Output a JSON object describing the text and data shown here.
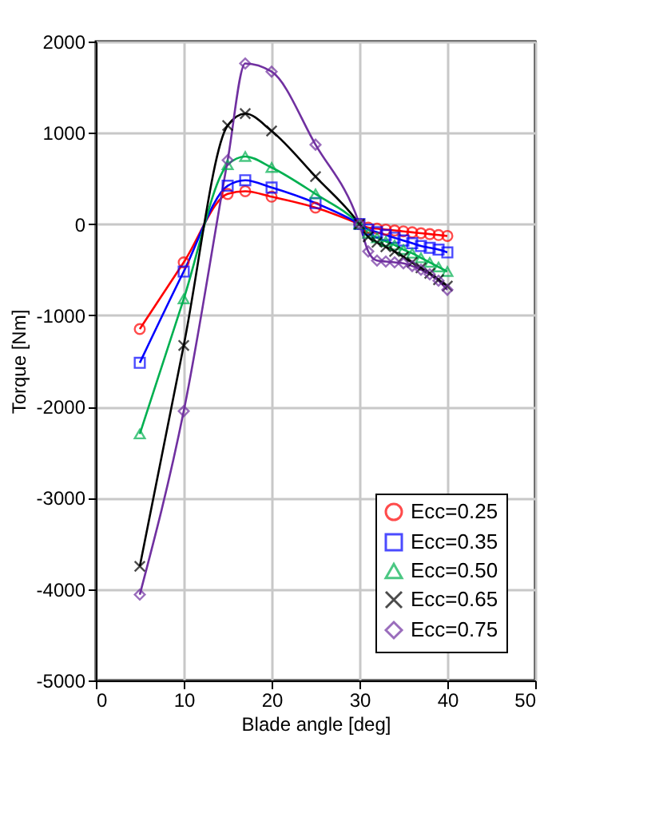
{
  "chart_data": {
    "type": "line",
    "xlabel": "Blade angle [deg]",
    "ylabel": "Torque [Nm]",
    "x": [
      5,
      10,
      15,
      17,
      20,
      25,
      30,
      31,
      32,
      33,
      34,
      35,
      36,
      37,
      38,
      39,
      40
    ],
    "xlim": [
      0,
      50
    ],
    "xticks": [
      0,
      10,
      20,
      30,
      40,
      50
    ],
    "ylim": [
      -5000,
      2000
    ],
    "yticks": [
      -5000,
      -4000,
      -3000,
      -2000,
      -1000,
      0,
      1000,
      2000
    ],
    "grid": true,
    "legend": "bottom right",
    "line_style": "solid",
    "series": [
      {
        "name": "Ecc=0.25",
        "color": "#ff0000",
        "marker": "circle",
        "values": [
          -1150,
          -420,
          330,
          360,
          300,
          180,
          0,
          -40,
          -50,
          -60,
          -70,
          -80,
          -90,
          -100,
          -110,
          -120,
          -130
        ]
      },
      {
        "name": "Ecc=0.35",
        "color": "#0000ff",
        "marker": "square",
        "values": [
          -1520,
          -520,
          420,
          480,
          400,
          230,
          0,
          -60,
          -90,
          -120,
          -150,
          -180,
          -210,
          -240,
          -260,
          -280,
          -310
        ]
      },
      {
        "name": "Ecc=0.50",
        "color": "#00b050",
        "marker": "triangle",
        "values": [
          -2300,
          -820,
          650,
          740,
          620,
          330,
          0,
          -100,
          -150,
          -190,
          -230,
          -280,
          -320,
          -370,
          -420,
          -470,
          -520
        ]
      },
      {
        "name": "Ecc=0.65",
        "color": "#000000",
        "marker": "cross",
        "values": [
          -3750,
          -1330,
          1080,
          1210,
          1020,
          520,
          0,
          -140,
          -200,
          -250,
          -300,
          -360,
          -420,
          -480,
          -540,
          -610,
          -680
        ]
      },
      {
        "name": "Ecc=0.75",
        "color": "#7030a0",
        "marker": "diamond",
        "values": [
          -4060,
          -2050,
          700,
          1760,
          1670,
          870,
          0,
          -300,
          -400,
          -410,
          -420,
          -430,
          -460,
          -500,
          -550,
          -620,
          -720
        ]
      }
    ]
  }
}
